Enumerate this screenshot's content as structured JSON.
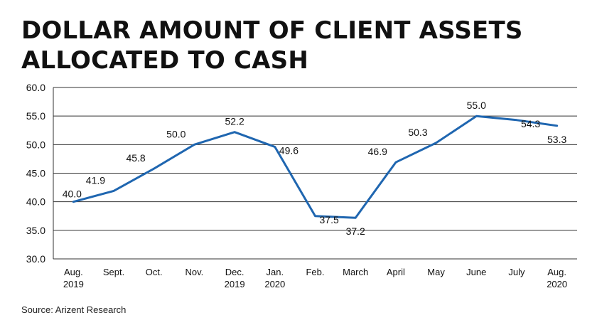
{
  "title_lines": [
    "DOLLAR AMOUNT OF CLIENT ASSETS",
    "ALLOCATED TO CASH"
  ],
  "source": "Source: Arizent Research",
  "colors": {
    "line": "#1f66b0",
    "grid": "#333333",
    "text": "#111111"
  },
  "chart_data": {
    "type": "line",
    "title": "DOLLAR AMOUNT OF CLIENT ASSETS ALLOCATED TO CASH",
    "xlabel": "",
    "ylabel": "",
    "ylim": [
      30.0,
      60.0
    ],
    "yticks": [
      "30.0",
      "35.0",
      "40.0",
      "45.0",
      "50.0",
      "55.0",
      "60.0"
    ],
    "grid": true,
    "legend": "none",
    "categories": [
      [
        "Aug.",
        "2019"
      ],
      [
        "Sept."
      ],
      [
        "Oct."
      ],
      [
        "Nov."
      ],
      [
        "Dec.",
        "2019"
      ],
      [
        "Jan.",
        "2020"
      ],
      [
        "Feb."
      ],
      [
        "March"
      ],
      [
        "April"
      ],
      [
        "May"
      ],
      [
        "June"
      ],
      [
        "July"
      ],
      [
        "Aug.",
        "2020"
      ]
    ],
    "values": [
      40.0,
      41.9,
      45.8,
      50.0,
      52.2,
      49.6,
      37.5,
      37.2,
      46.9,
      50.3,
      55.0,
      54.3,
      53.3
    ],
    "labels": [
      "40.0",
      "41.9",
      "45.8",
      "50.0",
      "52.2",
      "49.6",
      "37.5",
      "37.2",
      "46.9",
      "50.3",
      "55.0",
      "54.3",
      "53.3"
    ]
  }
}
